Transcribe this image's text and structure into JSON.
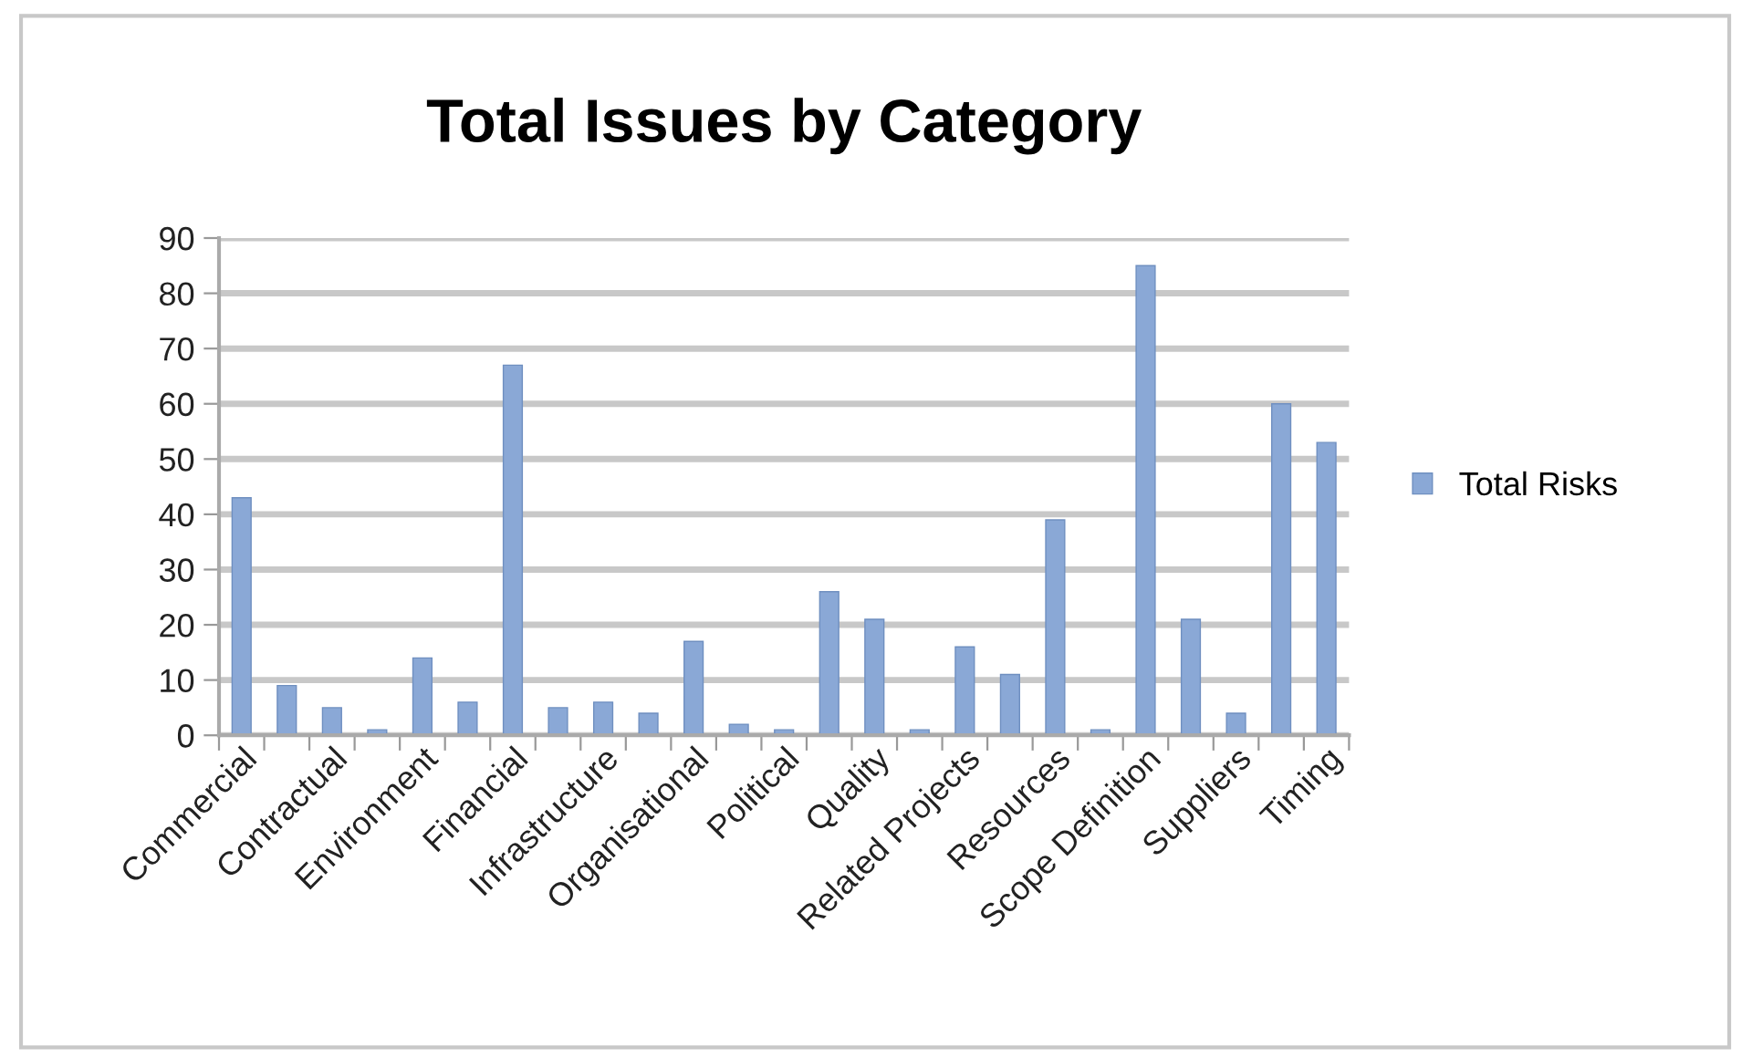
{
  "chart_data": {
    "type": "bar",
    "title": "Total Issues by Category",
    "categories": [
      "Commercial",
      null,
      "Contractual",
      null,
      "Environment",
      null,
      "Financial",
      null,
      "Infrastructure",
      null,
      "Organisational",
      null,
      "Political",
      null,
      "Quality",
      null,
      "Related Projects",
      null,
      "Resources",
      null,
      "Scope Definition",
      null,
      "Suppliers",
      null,
      "Timing"
    ],
    "series": [
      {
        "name": "Total Risks",
        "color": "#8aa8d6",
        "values": [
          43,
          9,
          5,
          1,
          14,
          6,
          67,
          5,
          6,
          4,
          17,
          2,
          1,
          26,
          21,
          1,
          16,
          11,
          39,
          1,
          85,
          21,
          4,
          60,
          53
        ]
      }
    ],
    "ylim": [
      0,
      90
    ],
    "yticks": [
      0,
      10,
      20,
      30,
      40,
      50,
      60,
      70,
      80,
      90
    ],
    "grid": "y",
    "legend": "right"
  }
}
